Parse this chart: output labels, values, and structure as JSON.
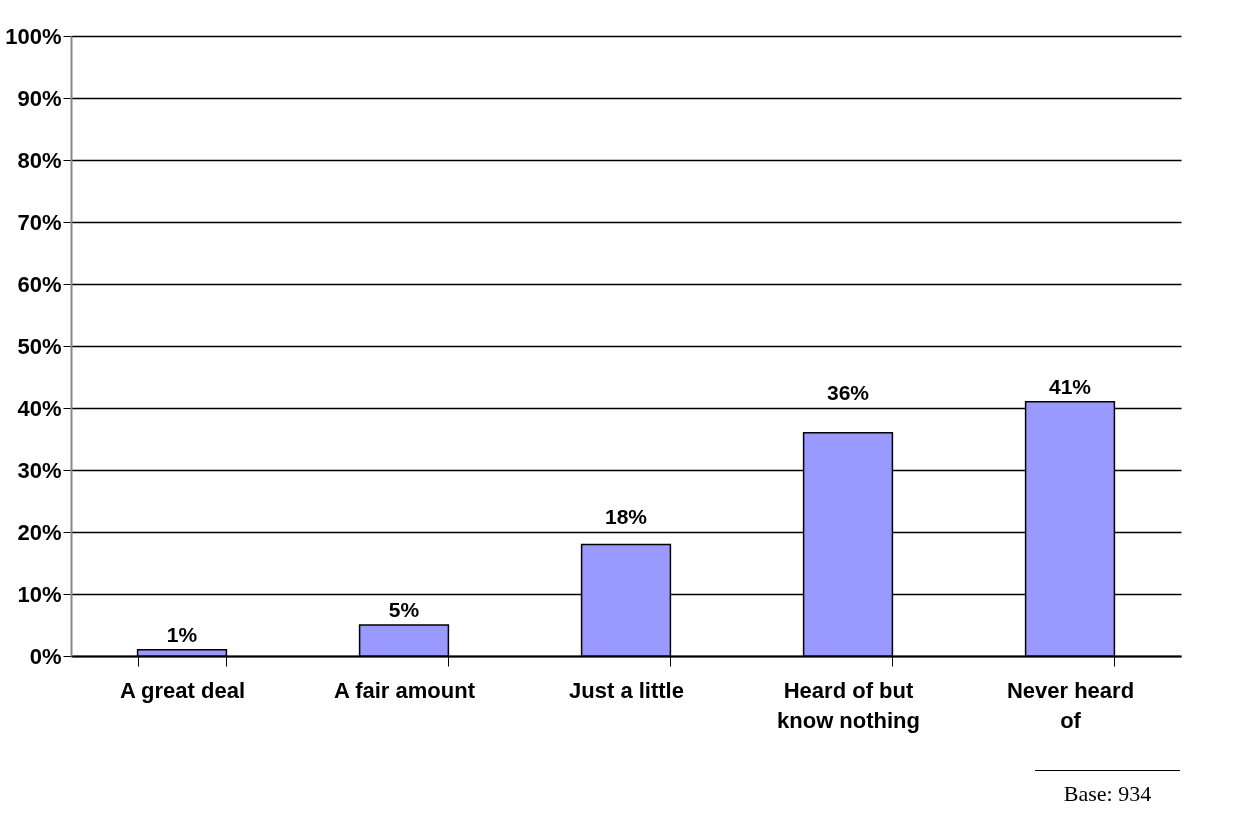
{
  "chart_data": {
    "type": "bar",
    "categories": [
      "A great deal",
      "A fair amount",
      "Just a little",
      "Heard of but know nothing",
      "Never heard of"
    ],
    "values": [
      1,
      5,
      18,
      36,
      41
    ],
    "color": "#9999ff",
    "ylim": [
      0,
      100
    ],
    "yticks": [
      {
        "value": 0,
        "label": "0%"
      },
      {
        "value": 10,
        "label": "10%"
      },
      {
        "value": 20,
        "label": "20%"
      },
      {
        "value": 30,
        "label": "30%"
      },
      {
        "value": 40,
        "label": "40%"
      },
      {
        "value": 50,
        "label": "50%"
      },
      {
        "value": 60,
        "label": "60%"
      },
      {
        "value": 70,
        "label": "70%"
      },
      {
        "value": 80,
        "label": "80%"
      },
      {
        "value": 90,
        "label": "90%"
      },
      {
        "value": 100,
        "label": "100%"
      }
    ],
    "value_labels": [
      "1%",
      "5%",
      "18%",
      "36%",
      "41%"
    ],
    "grid": "y",
    "annotations": [
      "Base: 934"
    ]
  }
}
